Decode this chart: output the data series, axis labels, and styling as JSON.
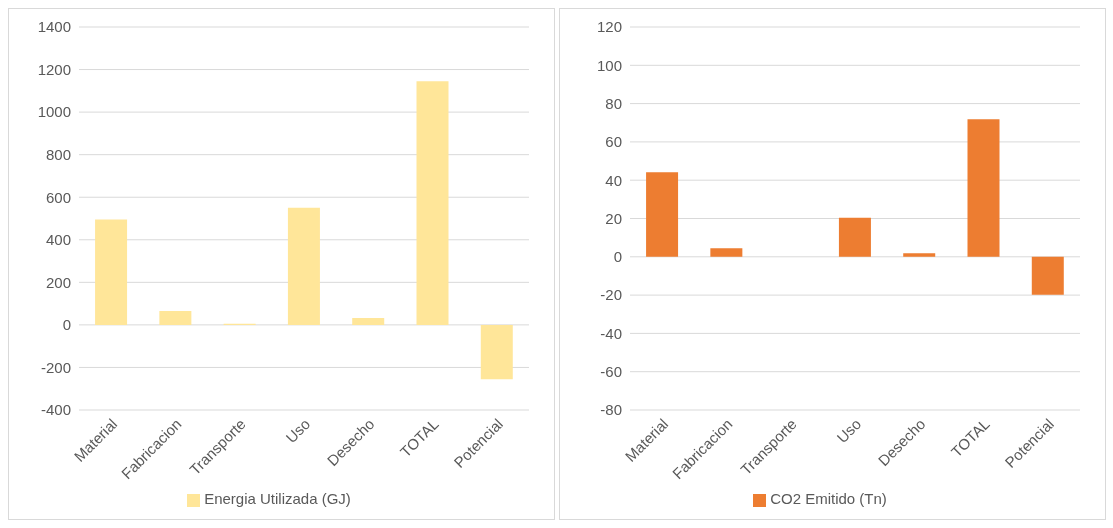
{
  "chart_data": [
    {
      "type": "bar",
      "categories": [
        "Material",
        "Fabricacion",
        "Transporte",
        "Uso",
        "Desecho",
        "TOTAL",
        "Potencial"
      ],
      "series": [
        {
          "name": "Energia Utilizada (GJ)",
          "color": "#ffe699",
          "values": [
            495,
            65,
            5,
            550,
            32,
            1145,
            -255
          ]
        }
      ],
      "ylim": [
        -400,
        1400
      ],
      "yticks": [
        -400,
        -200,
        0,
        200,
        400,
        600,
        800,
        1000,
        1200,
        1400
      ],
      "grid": "y",
      "legend": "bottom"
    },
    {
      "type": "bar",
      "categories": [
        "Material",
        "Fabricacion",
        "Transporte",
        "Uso",
        "Desecho",
        "TOTAL",
        "Potencial"
      ],
      "series": [
        {
          "name": "CO2 Emitido (Tn)",
          "color": "#ed7d31",
          "values": [
            44.2,
            4.4,
            null,
            20.4,
            1.9,
            71.8,
            -19.8
          ]
        }
      ],
      "ylim": [
        -80,
        120
      ],
      "yticks": [
        -80,
        -60,
        -40,
        -20,
        0,
        20,
        40,
        60,
        80,
        100,
        120
      ],
      "grid": "y",
      "legend": "bottom"
    }
  ]
}
